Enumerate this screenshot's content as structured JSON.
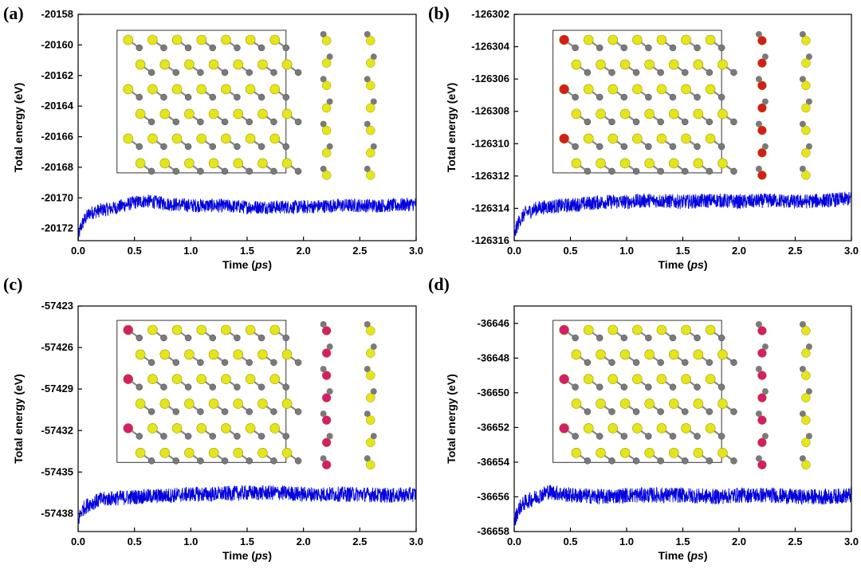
{
  "chart_data": [
    {
      "panel": "(a)",
      "type": "line",
      "xlabel_prefix": "Time (",
      "xlabel_unit": "ps",
      "xlabel_suffix": ")",
      "ylabel": "Total energy (eV)",
      "xlim": [
        0.0,
        3.0
      ],
      "ylim": [
        -20172.8,
        -20158
      ],
      "xticks": [
        "0.0",
        "0.5",
        "1.0",
        "1.5",
        "2.0",
        "2.5",
        "3.0"
      ],
      "yticks": [
        "-20158",
        "-20160",
        "-20162",
        "-20164",
        "-20166",
        "-20168",
        "-20170",
        "-20172"
      ],
      "x": [
        0.0,
        0.02,
        0.05,
        0.1,
        0.2,
        0.3,
        0.5,
        0.6,
        0.8,
        1.0,
        1.2,
        1.5,
        1.8,
        2.0,
        2.3,
        2.5,
        2.8,
        3.0
      ],
      "y": [
        -20172.7,
        -20172.0,
        -20171.5,
        -20171.0,
        -20170.8,
        -20170.7,
        -20170.3,
        -20170.2,
        -20170.4,
        -20170.5,
        -20170.5,
        -20170.6,
        -20170.6,
        -20170.6,
        -20170.5,
        -20170.5,
        -20170.5,
        -20170.4
      ],
      "noise": 0.45,
      "color": "#0000e0",
      "inset_accent": "#9fa8c9"
    },
    {
      "panel": "(b)",
      "type": "line",
      "xlabel_prefix": "Time (",
      "xlabel_unit": "ps",
      "xlabel_suffix": ")",
      "ylabel": "Total energy (eV)",
      "xlim": [
        0.0,
        3.0
      ],
      "ylim": [
        -126316,
        -126302
      ],
      "xticks": [
        "0.0",
        "0.5",
        "1.0",
        "1.5",
        "2.0",
        "2.5",
        "3.0"
      ],
      "yticks": [
        "-126302",
        "-126304",
        "-126306",
        "-126308",
        "-126310",
        "-126312",
        "-126314",
        "-126316"
      ],
      "x": [
        0.0,
        0.02,
        0.05,
        0.1,
        0.2,
        0.3,
        0.5,
        0.8,
        1.0,
        1.2,
        1.5,
        1.8,
        2.0,
        2.3,
        2.5,
        2.8,
        3.0
      ],
      "y": [
        -126315.8,
        -126315.2,
        -126314.7,
        -126314.3,
        -126314.0,
        -126313.9,
        -126313.8,
        -126313.6,
        -126313.6,
        -126313.5,
        -126313.6,
        -126313.5,
        -126313.6,
        -126313.5,
        -126313.6,
        -126313.5,
        -126313.4
      ],
      "noise": 0.45,
      "color": "#0000e0",
      "inset_accent": "#d81b1b"
    },
    {
      "panel": "(c)",
      "type": "line",
      "xlabel_prefix": "Time (",
      "xlabel_unit": "ps",
      "xlabel_suffix": ")",
      "ylabel": "Total energy (eV)",
      "xlim": [
        0.0,
        3.0
      ],
      "ylim": [
        -57439.3,
        -57423
      ],
      "xticks": [
        "0.0",
        "0.5",
        "1.0",
        "1.5",
        "2.0",
        "2.5",
        "3.0"
      ],
      "yticks": [
        "-57423",
        "-57426",
        "-57429",
        "-57432",
        "-57435",
        "-57438"
      ],
      "x": [
        0.0,
        0.02,
        0.05,
        0.1,
        0.2,
        0.3,
        0.5,
        0.8,
        1.0,
        1.2,
        1.5,
        1.8,
        2.0,
        2.3,
        2.5,
        2.8,
        3.0
      ],
      "y": [
        -57438.6,
        -57438.0,
        -57437.6,
        -57437.3,
        -57437.0,
        -57436.9,
        -57436.8,
        -57436.7,
        -57436.6,
        -57436.6,
        -57436.5,
        -57436.5,
        -57436.6,
        -57436.6,
        -57436.6,
        -57436.7,
        -57436.6
      ],
      "noise": 0.55,
      "color": "#0000e0",
      "inset_accent": "#d81b6e"
    },
    {
      "panel": "(d)",
      "type": "line",
      "xlabel_prefix": "Time (",
      "xlabel_unit": "ps",
      "xlabel_suffix": ")",
      "ylabel": "Total energy (eV)",
      "xlim": [
        0.0,
        3.0
      ],
      "ylim": [
        -36658,
        -36645
      ],
      "xticks": [
        "0.0",
        "0.5",
        "1.0",
        "1.5",
        "2.0",
        "2.5",
        "3.0"
      ],
      "yticks": [
        "-36646",
        "-36648",
        "-36650",
        "-36652",
        "-36654",
        "-36656",
        "-36658"
      ],
      "x": [
        0.0,
        0.02,
        0.05,
        0.1,
        0.2,
        0.3,
        0.5,
        0.8,
        1.0,
        1.2,
        1.5,
        1.8,
        2.0,
        2.3,
        2.5,
        2.8,
        3.0
      ],
      "y": [
        -36657.6,
        -36657.0,
        -36656.6,
        -36656.3,
        -36656.0,
        -36655.7,
        -36655.9,
        -36656.0,
        -36655.9,
        -36655.9,
        -36655.9,
        -36656.0,
        -36655.9,
        -36655.9,
        -36656.0,
        -36656.0,
        -36655.9
      ],
      "noise": 0.45,
      "color": "#0000e0",
      "inset_accent": "#d81b6e"
    }
  ]
}
